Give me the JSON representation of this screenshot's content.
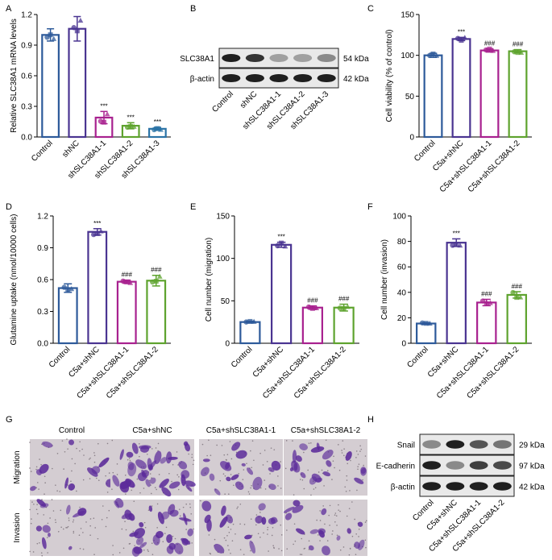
{
  "panel_letters": {
    "A": "A",
    "B": "B",
    "C": "C",
    "D": "D",
    "E": "E",
    "F": "F",
    "G": "G",
    "H": "H"
  },
  "colors": {
    "Control": "#2d5a9a",
    "shNC": "#4a3491",
    "shSLC38A1-1": "#a8218f",
    "shSLC38A1-2": "#5ea32e",
    "shSLC38A1-3": "#2b73a6",
    "stain": "#5b2a9a",
    "stain_bg": "#d4cdd2"
  },
  "chart_data": [
    {
      "type": "bar",
      "panel": "A",
      "categories": [
        "Control",
        "shNC",
        "shSLC38A1-1",
        "shSLC38A1-2",
        "shSLC38A1-3"
      ],
      "values": [
        1.0,
        1.06,
        0.19,
        0.11,
        0.08
      ],
      "errors": [
        0.06,
        0.12,
        0.06,
        0.03,
        0.015
      ],
      "annotations": [
        "",
        "",
        "***",
        "***",
        "***"
      ],
      "ylabel": "Relative SLC38A1 mRNA levels",
      "ylim": [
        0,
        1.2
      ],
      "yticks": [
        "0.0",
        "0.3",
        "0.6",
        "0.9",
        "1.2"
      ],
      "ytick_values": [
        0,
        0.3,
        0.6,
        0.9,
        1.2
      ]
    },
    {
      "type": "bar",
      "panel": "C",
      "categories": [
        "Control",
        "C5a+shNC",
        "C5a+shSLC38A1-1",
        "C5a+shSLC38A1-2"
      ],
      "values": [
        100,
        120,
        106,
        105
      ],
      "errors": [
        2.5,
        2,
        2,
        2
      ],
      "annotations": [
        "",
        "***",
        "###",
        "###"
      ],
      "ylabel": "Cell viability (% of control)",
      "ylim": [
        0,
        150
      ],
      "yticks": [
        "0",
        "50",
        "100",
        "150"
      ],
      "ytick_values": [
        0,
        50,
        100,
        150
      ]
    },
    {
      "type": "bar",
      "panel": "D",
      "categories": [
        "Control",
        "C5a+shNC",
        "C5a+shSLC38A1-1",
        "C5a+shSLC38A1-2"
      ],
      "values": [
        0.52,
        1.05,
        0.58,
        0.59
      ],
      "errors": [
        0.04,
        0.03,
        0.015,
        0.05
      ],
      "annotations": [
        "",
        "***",
        "###",
        "###"
      ],
      "ylabel": "Glutamine uptake (nmol/10000 cells)",
      "ylim": [
        0,
        1.2
      ],
      "yticks": [
        "0.0",
        "0.3",
        "0.6",
        "0.9",
        "1.2"
      ],
      "ytick_values": [
        0,
        0.3,
        0.6,
        0.9,
        1.2
      ]
    },
    {
      "type": "bar",
      "panel": "E",
      "categories": [
        "Control",
        "C5a+shNC",
        "C5a+shSLC38A1-1",
        "C5a+shSLC38A1-2"
      ],
      "values": [
        25,
        116,
        42,
        42
      ],
      "errors": [
        1,
        3,
        2,
        4
      ],
      "annotations": [
        "",
        "***",
        "###",
        "###"
      ],
      "ylabel": "Cell number (migration)",
      "ylim": [
        0,
        150
      ],
      "yticks": [
        "0",
        "50",
        "100",
        "150"
      ],
      "ytick_values": [
        0,
        50,
        100,
        150
      ]
    },
    {
      "type": "bar",
      "panel": "F",
      "categories": [
        "Control",
        "C5a+shNC",
        "C5a+shSLC38A1-1",
        "C5a+shSLC38A1-2"
      ],
      "values": [
        15.5,
        79,
        32,
        38
      ],
      "errors": [
        0.6,
        3,
        2.5,
        2.5
      ],
      "annotations": [
        "",
        "***",
        "###",
        "###"
      ],
      "ylabel": "Cell number (invasion)",
      "ylim": [
        0,
        100
      ],
      "yticks": [
        "0",
        "20",
        "40",
        "60",
        "80",
        "100"
      ],
      "ytick_values": [
        0,
        20,
        40,
        60,
        80,
        100
      ]
    }
  ],
  "blot_B": {
    "rows": [
      {
        "label": "SLC38A1",
        "size": "54 kDa",
        "intensities": [
          0.95,
          0.85,
          0.35,
          0.35,
          0.45
        ]
      },
      {
        "label": "β-actin",
        "size": "42 kDa",
        "intensities": [
          0.95,
          0.95,
          0.95,
          0.95,
          0.95
        ]
      }
    ],
    "lanes": [
      "Control",
      "shNC",
      "shSLC38A1-1",
      "shSLC38A1-2",
      "shSLC38A1-3"
    ]
  },
  "blot_H": {
    "rows": [
      {
        "label": "Snail",
        "size": "29 kDa",
        "intensities": [
          0.45,
          0.95,
          0.7,
          0.55
        ]
      },
      {
        "label": "E-cadherin",
        "size": "97 kDa",
        "intensities": [
          0.95,
          0.45,
          0.8,
          0.75
        ]
      },
      {
        "label": "β-actin",
        "size": "42 kDa",
        "intensities": [
          0.95,
          0.95,
          0.95,
          0.95
        ]
      }
    ],
    "lanes": [
      "Control",
      "C5a+shNC",
      "C5a+shSLC38A1-1",
      "C5a+shSLC38A1-2"
    ]
  },
  "micro_G": {
    "columns": [
      "Control",
      "C5a+shNC",
      "C5a+shSLC38A1-1",
      "C5a+shSLC38A1-2"
    ],
    "rows": [
      "Migration",
      "Invasion"
    ],
    "density": [
      [
        0.18,
        0.75,
        0.32,
        0.38
      ],
      [
        0.14,
        0.6,
        0.26,
        0.3
      ]
    ]
  }
}
